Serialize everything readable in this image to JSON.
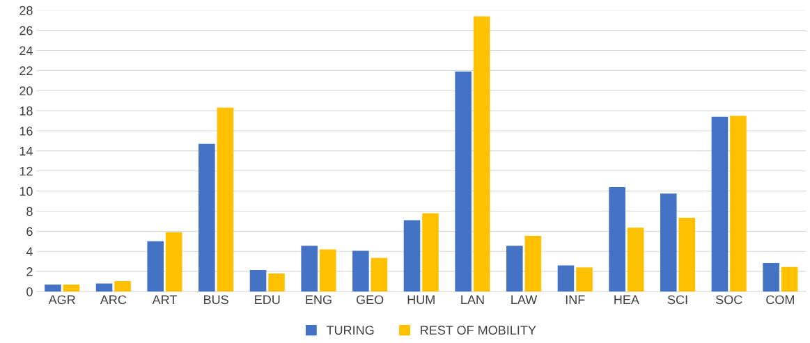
{
  "chart_data": {
    "type": "bar",
    "categories": [
      "AGR",
      "ARC",
      "ART",
      "BUS",
      "EDU",
      "ENG",
      "GEO",
      "HUM",
      "LAN",
      "LAW",
      "INF",
      "HEA",
      "SCI",
      "SOC",
      "COM"
    ],
    "series": [
      {
        "name": "TURING",
        "color": "#4472c4",
        "values": [
          0.7,
          0.8,
          5.0,
          14.7,
          2.15,
          4.55,
          4.05,
          7.1,
          21.9,
          4.55,
          2.6,
          10.4,
          9.75,
          17.4,
          2.85
        ]
      },
      {
        "name": "REST OF MOBILITY",
        "color": "#ffc000",
        "values": [
          0.7,
          1.05,
          5.9,
          18.3,
          1.8,
          4.2,
          3.35,
          7.8,
          27.4,
          5.55,
          2.4,
          6.35,
          7.35,
          17.5,
          2.45
        ]
      }
    ],
    "ylim": [
      0,
      28
    ],
    "yticks": [
      0,
      2,
      4,
      6,
      8,
      10,
      12,
      14,
      16,
      18,
      20,
      22,
      24,
      26,
      28
    ],
    "grid": "y",
    "legend": "bottom"
  }
}
